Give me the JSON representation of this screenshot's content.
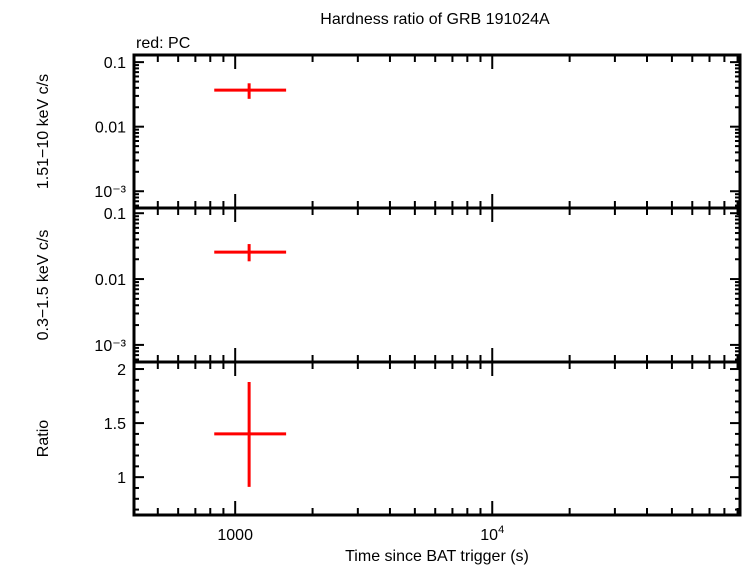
{
  "chart_data": [
    {
      "type": "scatter",
      "title": "Hardness ratio of GRB 191024A",
      "annotation": "red: PC",
      "ylabel": "1.51−10 keV c/s",
      "yscale": "log",
      "ylim": [
        0.00055,
        0.129
      ],
      "yticks": [
        {
          "v": 0.1,
          "label": "0.1"
        },
        {
          "v": 0.01,
          "label": "0.01"
        },
        {
          "v": 0.001,
          "label": "10⁻³"
        }
      ],
      "series": [
        {
          "color": "#ff0000",
          "points": [
            {
              "x": 1133,
              "xlo": 829,
              "xhi": 1578,
              "y": 0.0368,
              "ylo": 0.027,
              "yhi": 0.047
            }
          ]
        }
      ]
    },
    {
      "type": "scatter",
      "ylabel": "0.3−1.5 keV c/s",
      "yscale": "log",
      "ylim": [
        0.00055,
        0.12
      ],
      "yticks": [
        {
          "v": 0.1,
          "label": "0.1"
        },
        {
          "v": 0.01,
          "label": "0.01"
        },
        {
          "v": 0.001,
          "label": "10⁻³"
        }
      ],
      "series": [
        {
          "color": "#ff0000",
          "points": [
            {
              "x": 1133,
              "xlo": 829,
              "xhi": 1578,
              "y": 0.0257,
              "ylo": 0.0186,
              "yhi": 0.034
            }
          ]
        }
      ]
    },
    {
      "type": "scatter",
      "ylabel": "Ratio",
      "yscale": "linear",
      "ylim": [
        0.65,
        2.065
      ],
      "yticks": [
        {
          "v": 2,
          "label": "2"
        },
        {
          "v": 1.5,
          "label": "1.5"
        },
        {
          "v": 1,
          "label": "1"
        }
      ],
      "yminor": 0.1,
      "xlabel": "Time since BAT trigger (s)",
      "series": [
        {
          "color": "#ff0000",
          "points": [
            {
              "x": 1133,
              "xlo": 829,
              "xhi": 1578,
              "y": 1.4,
              "ylo": 0.91,
              "yhi": 1.88
            }
          ]
        }
      ]
    }
  ],
  "xaxis": {
    "scale": "log",
    "xlim": [
      404,
      92000
    ],
    "ticks": [
      {
        "v": 1000,
        "label": "1000"
      },
      {
        "v": 10000,
        "label": "10",
        "sup": "4"
      }
    ]
  }
}
